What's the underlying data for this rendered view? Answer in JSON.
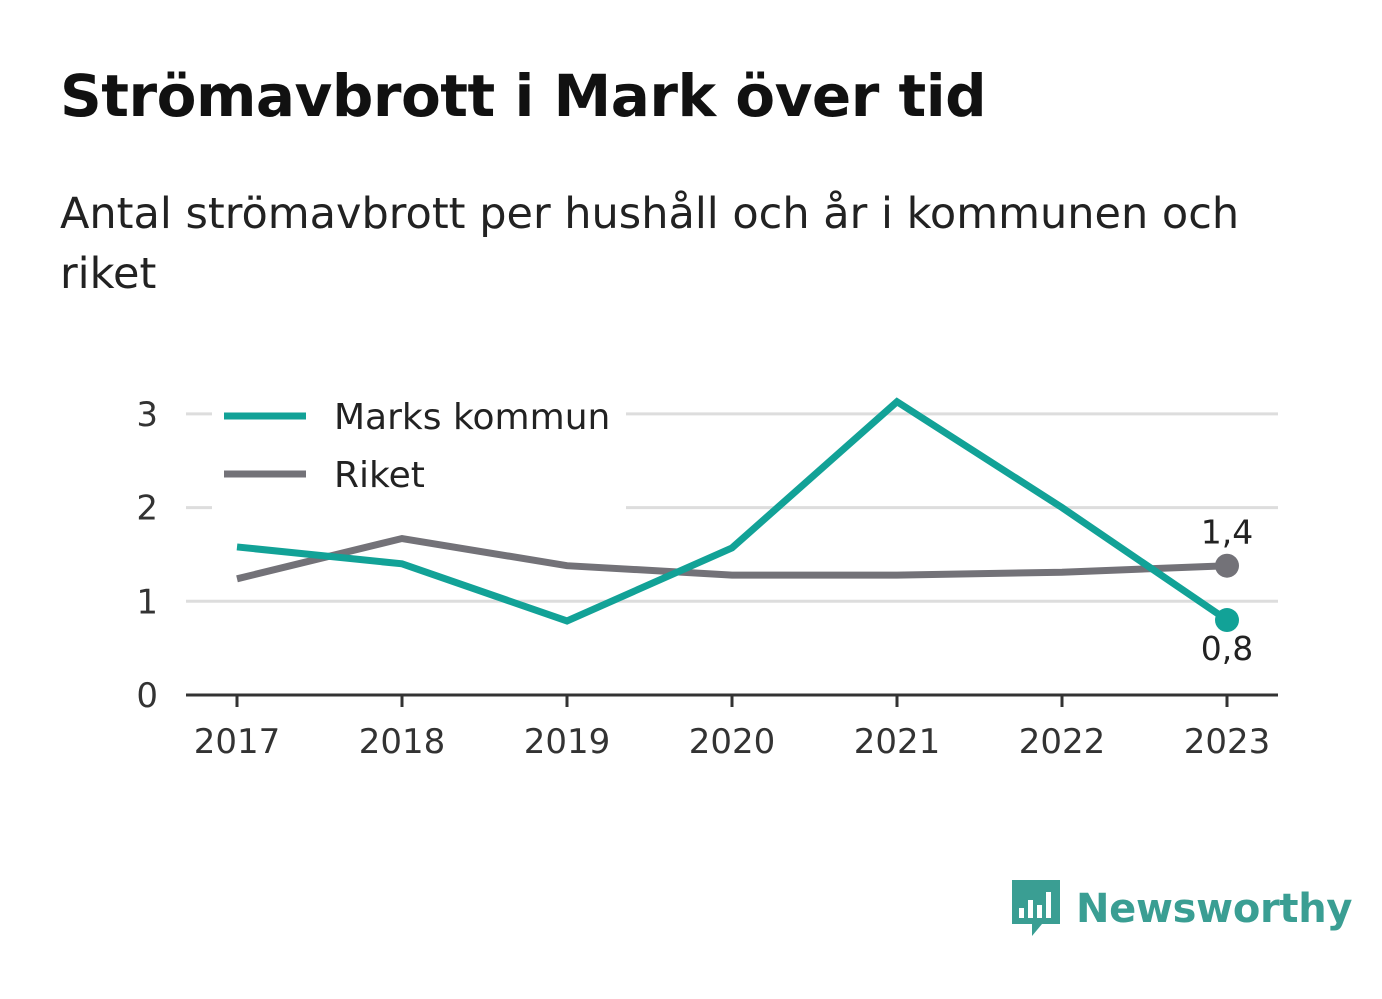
{
  "header": {
    "title": "Strömavbrott i Mark över tid",
    "subtitle": "Antal strömavbrott per hushåll och år i kommunen och riket"
  },
  "branding": {
    "logo_text": "Newsworthy",
    "logo_icon": "bar-chart-speech-bubble-icon",
    "color": "#3a9e93"
  },
  "chart_data": {
    "type": "line",
    "title": "Strömavbrott i Mark över tid",
    "subtitle": "Antal strömavbrott per hushåll och år i kommunen och riket",
    "categories": [
      "2017",
      "2018",
      "2019",
      "2020",
      "2021",
      "2022",
      "2023"
    ],
    "series": [
      {
        "name": "Marks kommun",
        "color": "#12a297",
        "values": [
          1.58,
          1.4,
          0.79,
          1.57,
          3.13,
          2.0,
          0.8
        ],
        "end_label": "0,8"
      },
      {
        "name": "Riket",
        "color": "#737278",
        "values": [
          1.24,
          1.67,
          1.38,
          1.28,
          1.28,
          1.31,
          1.38
        ],
        "end_label": "1,4"
      }
    ],
    "yticks": [
      "0",
      "1",
      "2",
      "3"
    ],
    "ylim": [
      0,
      3.3
    ],
    "grid": true,
    "legend_position": "top-left"
  }
}
